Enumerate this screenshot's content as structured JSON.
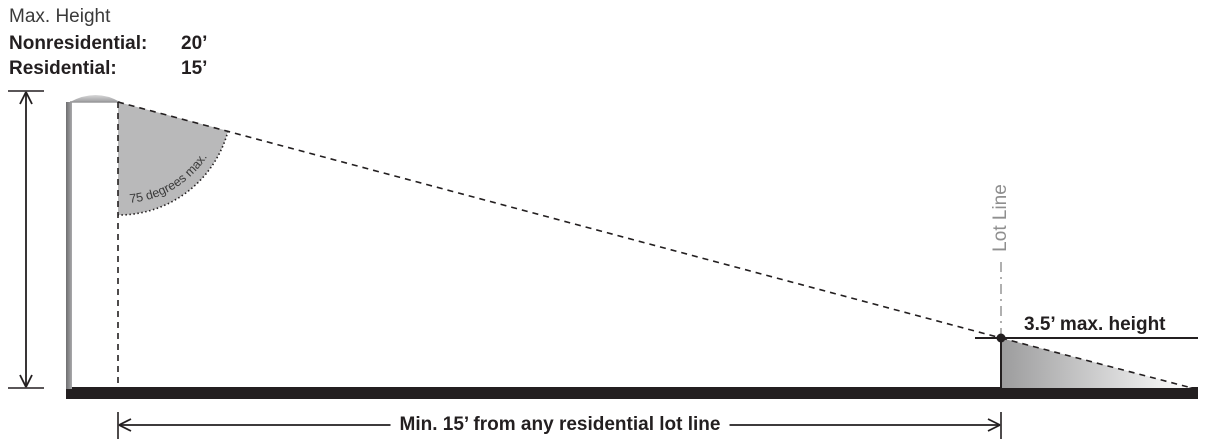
{
  "heights": {
    "title": "Max. Height",
    "nonresidential": {
      "label": "Nonresidential:",
      "value": "20’"
    },
    "residential": {
      "label": "Residential:",
      "value": "15’"
    }
  },
  "angle_label": "75 degrees max.",
  "lot_line_label": "Lot Line",
  "lot_line_height_label": "3.5’ max. height",
  "setback_label": "Min. 15’ from any residential lot line",
  "colors": {
    "ink": "#231f20",
    "cone_fill": "#b9b9ba",
    "lot_line_text": "#8f8f8f"
  }
}
